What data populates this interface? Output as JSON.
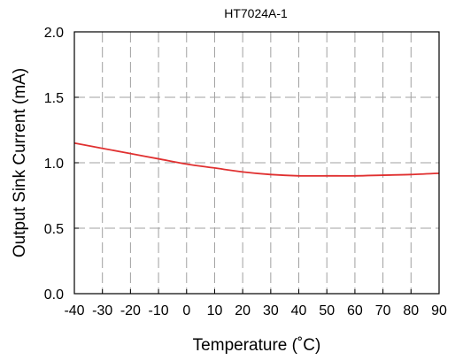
{
  "chart_data": {
    "type": "line",
    "title": "HT7024A-1",
    "xlabel": "Temperature (˚C)",
    "ylabel": "Output Sink Current (mA)",
    "xlim": [
      -40,
      90
    ],
    "ylim": [
      0.0,
      2.0
    ],
    "x_ticks": [
      -40,
      -30,
      -20,
      -10,
      0,
      10,
      20,
      30,
      40,
      50,
      60,
      70,
      80,
      90
    ],
    "y_ticks": [
      "0.0",
      "0.5",
      "1.0",
      "1.5",
      "2.0"
    ],
    "grid": true,
    "series": [
      {
        "color": "#e03030",
        "x": [
          -40,
          -30,
          -20,
          -10,
          0,
          10,
          20,
          30,
          40,
          50,
          60,
          70,
          80,
          90
        ],
        "y": [
          1.15,
          1.11,
          1.07,
          1.03,
          0.99,
          0.96,
          0.93,
          0.91,
          0.9,
          0.9,
          0.9,
          0.905,
          0.91,
          0.92
        ]
      }
    ]
  }
}
